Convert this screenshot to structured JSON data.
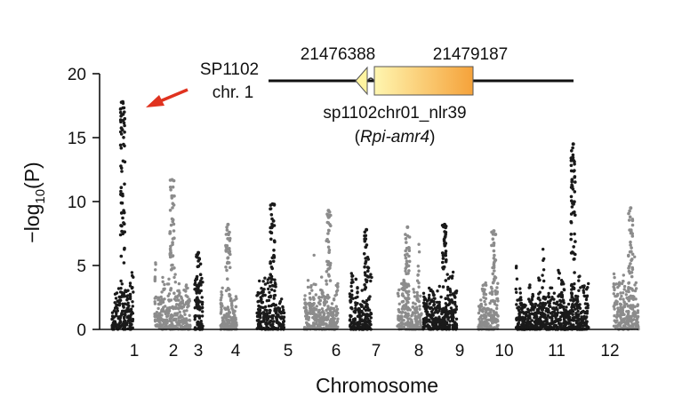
{
  "chart_data": {
    "type": "scatter",
    "subtype": "manhattan",
    "xlabel": "Chromosome",
    "ylabel_main": "−log",
    "ylabel_sub": "10",
    "ylabel_paren": "(P)",
    "ylim": [
      0,
      20
    ],
    "yticks": [
      "0",
      "5",
      "10",
      "15",
      "20"
    ],
    "grid": false,
    "legend": "none",
    "colors": {
      "dark": "#1a1a1a",
      "grey": "#8c8c8c",
      "arrow": "#e0321f",
      "gene_start": "#fff6b0",
      "gene_end": "#f5a23a",
      "gene_cap": "#fff4a0"
    },
    "chromosomes": [
      {
        "label": "1",
        "color": "dark",
        "peak": 17.8
      },
      {
        "label": "2",
        "color": "grey",
        "peak": 11.7
      },
      {
        "label": "3",
        "color": "dark",
        "peak": 6.0
      },
      {
        "label": "4",
        "color": "grey",
        "peak": 8.2
      },
      {
        "label": "5",
        "color": "dark",
        "peak": 9.8
      },
      {
        "label": "6",
        "color": "grey",
        "peak": 9.3
      },
      {
        "label": "7",
        "color": "dark",
        "peak": 7.8
      },
      {
        "label": "8",
        "color": "grey",
        "peak": 8.0
      },
      {
        "label": "9",
        "color": "dark",
        "peak": 8.2
      },
      {
        "label": "10",
        "color": "grey",
        "peak": 7.7
      },
      {
        "label": "11",
        "color": "dark",
        "peak": 14.5
      },
      {
        "label": "12",
        "color": "grey",
        "peak": 9.5
      }
    ],
    "annotations": {
      "locus_name": "SP1102",
      "locus_chr": "chr. 1",
      "start_pos": "21476388",
      "end_pos": "21479187",
      "gene_id": "sp1102chr01_nlr39",
      "gene_paren_open": "(",
      "gene_name": "Rpi-amr4",
      "gene_paren_close": ")"
    }
  }
}
